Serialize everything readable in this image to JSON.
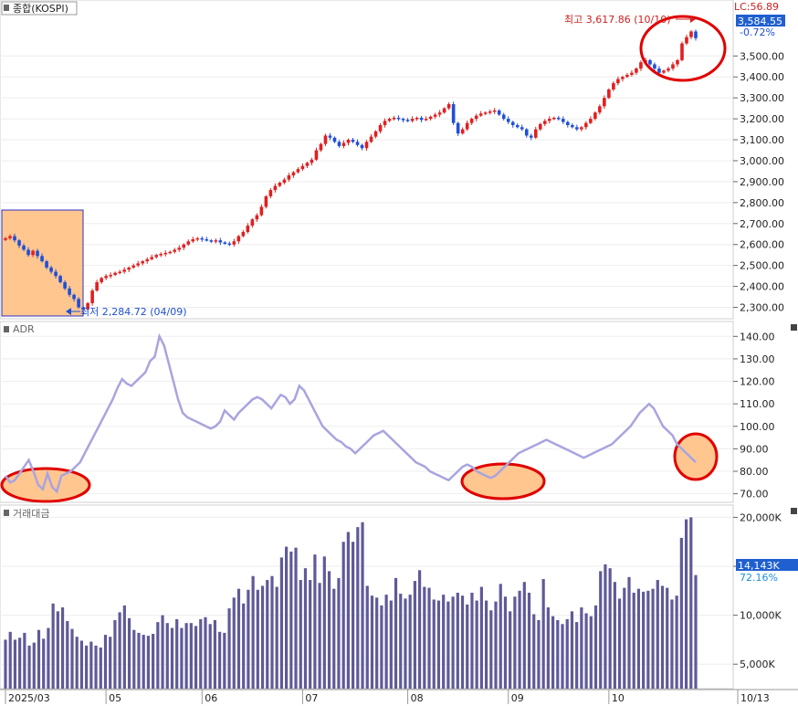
{
  "chart_data": [
    {
      "type": "candlestick",
      "title": "종합(KOSPI)",
      "lc_label": "LC:56.89",
      "last_price_label": "3,584.55",
      "change_label": "-0.72%",
      "high_annotation": "최고 3,617.86 (10/10)",
      "low_annotation": "최저 2,284.72 (04/09)",
      "colors": {
        "up": "#e02020",
        "down": "#1f4fd8",
        "lastBadge": "#1f5fd0",
        "highlight_fill": "#ffc690",
        "highlight_border": "#3030c0",
        "circle": "#e00000"
      },
      "ylim": [
        2250,
        3680
      ],
      "y_ticks": [
        {
          "value": 2300,
          "label": "2,300.00"
        },
        {
          "value": 2400,
          "label": "2,400.00"
        },
        {
          "value": 2500,
          "label": "2,500.00"
        },
        {
          "value": 2600,
          "label": "2,600.00"
        },
        {
          "value": 2700,
          "label": "2,700.00"
        },
        {
          "value": 2800,
          "label": "2,800.00"
        },
        {
          "value": 2900,
          "label": "2,900.00"
        },
        {
          "value": 3000,
          "label": "3,000.00"
        },
        {
          "value": 3100,
          "label": "3,100.00"
        },
        {
          "value": 3200,
          "label": "3,200.00"
        },
        {
          "value": 3300,
          "label": "3,300.00"
        },
        {
          "value": 3400,
          "label": "3,400.00"
        },
        {
          "value": 3500,
          "label": "3,500.00"
        }
      ],
      "close": [
        2630,
        2640,
        2620,
        2595,
        2575,
        2550,
        2570,
        2545,
        2520,
        2490,
        2470,
        2450,
        2420,
        2390,
        2360,
        2340,
        2300,
        2290,
        2320,
        2380,
        2420,
        2440,
        2450,
        2455,
        2465,
        2470,
        2480,
        2490,
        2500,
        2510,
        2520,
        2530,
        2540,
        2550,
        2555,
        2560,
        2565,
        2575,
        2585,
        2600,
        2615,
        2625,
        2630,
        2625,
        2620,
        2615,
        2620,
        2610,
        2605,
        2600,
        2615,
        2640,
        2660,
        2690,
        2720,
        2740,
        2780,
        2830,
        2860,
        2880,
        2895,
        2910,
        2930,
        2945,
        2960,
        2975,
        2990,
        3005,
        3050,
        3080,
        3120,
        3110,
        3090,
        3070,
        3085,
        3100,
        3090,
        3075,
        3060,
        3090,
        3115,
        3140,
        3170,
        3190,
        3200,
        3205,
        3200,
        3195,
        3190,
        3200,
        3205,
        3195,
        3200,
        3210,
        3220,
        3230,
        3250,
        3270,
        3180,
        3130,
        3150,
        3180,
        3200,
        3215,
        3225,
        3230,
        3235,
        3240,
        3220,
        3200,
        3185,
        3170,
        3160,
        3150,
        3120,
        3110,
        3150,
        3175,
        3190,
        3200,
        3205,
        3200,
        3185,
        3170,
        3160,
        3150,
        3160,
        3180,
        3200,
        3230,
        3260,
        3300,
        3340,
        3370,
        3390,
        3400,
        3410,
        3420,
        3440,
        3470,
        3480,
        3460,
        3440,
        3420,
        3430,
        3440,
        3460,
        3480,
        3560,
        3590,
        3617,
        3585
      ],
      "x_labels": [
        {
          "index": 0,
          "label": "2025/03"
        },
        {
          "index": 22,
          "label": "05"
        },
        {
          "index": 43,
          "label": "06"
        },
        {
          "index": 65,
          "label": "07"
        },
        {
          "index": 88,
          "label": "08"
        },
        {
          "index": 110,
          "label": "09"
        },
        {
          "index": 132,
          "label": "10"
        },
        {
          "index": 146,
          "label": "10/13"
        }
      ]
    },
    {
      "type": "line",
      "title": "ADR",
      "ylim": [
        67,
        145
      ],
      "y_ticks": [
        {
          "value": 70,
          "label": "70.00"
        },
        {
          "value": 80,
          "label": "80.00"
        },
        {
          "value": 90,
          "label": "90.00"
        },
        {
          "value": 100,
          "label": "100.00"
        },
        {
          "value": 110,
          "label": "110.00"
        },
        {
          "value": 120,
          "label": "120.00"
        },
        {
          "value": 130,
          "label": "130.00"
        },
        {
          "value": 140,
          "label": "140.00"
        }
      ],
      "values": [
        78,
        75,
        76,
        79,
        82,
        85,
        80,
        74,
        72,
        79,
        73,
        71,
        78,
        79,
        80,
        82,
        84,
        88,
        92,
        96,
        100,
        104,
        108,
        112,
        117,
        121,
        119,
        118,
        120,
        122,
        124,
        129,
        131,
        140,
        136,
        128,
        120,
        112,
        106,
        104,
        103,
        102,
        101,
        100,
        99,
        100,
        102,
        107,
        105,
        103,
        106,
        108,
        110,
        112,
        113,
        112,
        110,
        108,
        111,
        114,
        113,
        110,
        112,
        118,
        116,
        112,
        108,
        104,
        100,
        98,
        96,
        94,
        93,
        91,
        90,
        88,
        90,
        92,
        94,
        96,
        97,
        98,
        96,
        94,
        92,
        90,
        88,
        86,
        84,
        83,
        82,
        80,
        79,
        78,
        77,
        76,
        78,
        80,
        82,
        83,
        82,
        80,
        79,
        78,
        77,
        78,
        80,
        82,
        84,
        86,
        88,
        89,
        90,
        91,
        92,
        93,
        94,
        93,
        92,
        91,
        90,
        89,
        88,
        87,
        86,
        87,
        88,
        89,
        90,
        91,
        92,
        94,
        96,
        98,
        100,
        103,
        106,
        108,
        110,
        108,
        104,
        100,
        98,
        96,
        92,
        90,
        88,
        86,
        84
      ]
    },
    {
      "type": "bar",
      "title": "거래대금",
      "ylim": [
        2500,
        20600
      ],
      "y_ticks": [
        {
          "value": 5000,
          "label": "5,000K"
        },
        {
          "value": 10000,
          "label": "10,000K"
        },
        {
          "value": 15000,
          "label": "15,000K"
        },
        {
          "value": 20000,
          "label": "20,000K"
        }
      ],
      "last_value_label": "14,143K",
      "last_pct_label": "72.16%",
      "values": [
        7500,
        8300,
        7500,
        7700,
        8200,
        6900,
        7200,
        8500,
        7600,
        8700,
        11200,
        10400,
        10800,
        9400,
        8600,
        7800,
        7400,
        6900,
        7300,
        6900,
        6700,
        8000,
        7800,
        9500,
        10300,
        11000,
        9700,
        8500,
        8200,
        8000,
        7900,
        8100,
        9300,
        10000,
        9200,
        8700,
        9600,
        8700,
        9200,
        9200,
        8900,
        9600,
        9800,
        9100,
        9500,
        8300,
        8200,
        10700,
        11800,
        12700,
        11200,
        12600,
        14000,
        12600,
        13000,
        13600,
        14000,
        12900,
        15900,
        17000,
        16500,
        16900,
        13600,
        14800,
        13600,
        16200,
        13300,
        16000,
        14500,
        12700,
        13800,
        17500,
        18500,
        17500,
        19000,
        19500,
        13000,
        12000,
        11800,
        11000,
        12100,
        11500,
        13800,
        12200,
        11700,
        12100,
        13500,
        14600,
        12900,
        12800,
        11600,
        11500,
        12100,
        11400,
        11900,
        12300,
        12000,
        11100,
        12300,
        11500,
        12900,
        11500,
        10500,
        11400,
        13200,
        11900,
        10400,
        11900,
        12500,
        13400,
        12300,
        10100,
        9500,
        13700,
        10800,
        9900,
        9500,
        9100,
        9600,
        10400,
        9300,
        10800,
        10200,
        9900,
        11000,
        14500,
        15200,
        14800,
        13400,
        11700,
        12800,
        13900,
        12300,
        12700,
        12400,
        12500,
        12700,
        13600,
        13000,
        12800,
        11600,
        12000,
        17900,
        19800,
        20000,
        14100
      ]
    }
  ]
}
